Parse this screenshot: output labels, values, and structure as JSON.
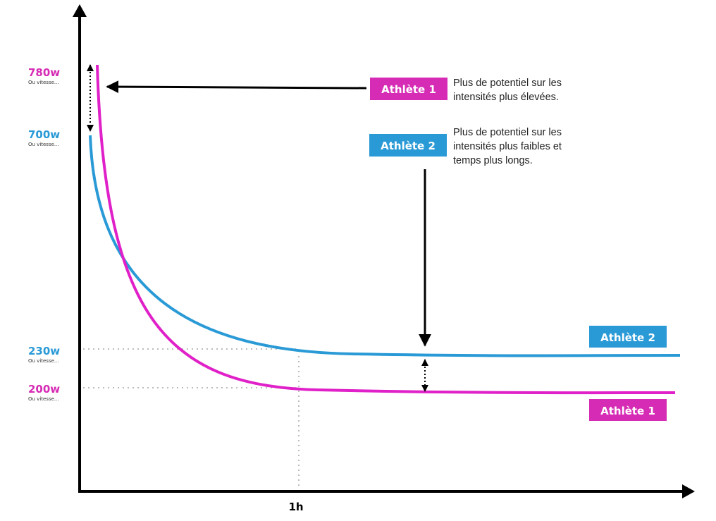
{
  "y_labels": [
    {
      "value": "780w",
      "note": "Ou vitesse..."
    },
    {
      "value": "700w",
      "note": "Ou vitesse..."
    },
    {
      "value": "230w",
      "note": "Ou vitesse..."
    },
    {
      "value": "200w",
      "note": "Ou vitesse..."
    }
  ],
  "x_label": "1h",
  "callouts": [
    {
      "tag": "Athlète 1",
      "text": [
        "Plus de potentiel sur les",
        "intensités plus élevées."
      ]
    },
    {
      "tag": "Athlète 2",
      "text": [
        "Plus de potentiel sur les",
        "intensités plus faibles et",
        "temps plus longs."
      ]
    }
  ],
  "curve_tags": [
    "Athlète 2",
    "Athlète 1"
  ]
}
